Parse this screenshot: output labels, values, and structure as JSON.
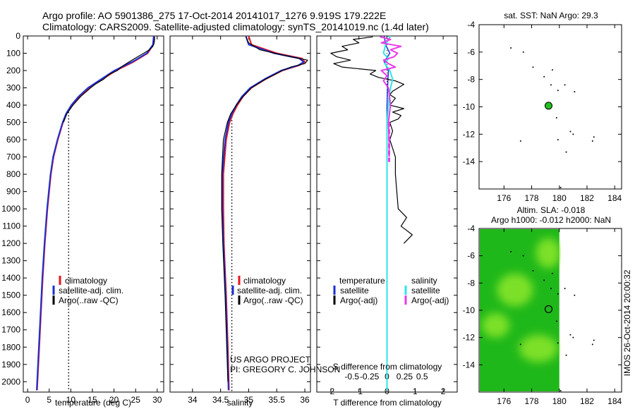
{
  "header": {
    "line1": "Argo profile: AO 5901386_275 17-Oct-2014 20141017_1276 9.919S 179.222E",
    "line2": "Climatology: CARS2009. Satellite-adjusted climatology: synTS_20141019.nc (1.4d later)"
  },
  "credits": {
    "line1": "US ARGO PROJECT",
    "line2": "PI: GREGORY C. JOHNSON"
  },
  "side_label": "IMOS 26-Oct-2014 20:00:32",
  "colors": {
    "climatology": "#e8161e",
    "satellite": "#1a2fd6",
    "argo": "#000000",
    "salinity_satellite": "#2ee6e6",
    "salinity_argo": "#e83be8",
    "float_marker": "#22c21e",
    "sla_dark": "#1fb81a",
    "sla_light": "#8de82a"
  },
  "chart_data": [
    {
      "id": "temperature",
      "type": "line",
      "xlabel": "temperature (deg C)",
      "ylabel": "",
      "xlim": [
        -1,
        31.5
      ],
      "ylim": [
        2060,
        0
      ],
      "xticks": [
        0,
        5,
        10,
        15,
        20,
        25,
        30
      ],
      "yticks": [
        0,
        100,
        200,
        300,
        400,
        500,
        600,
        700,
        800,
        900,
        1000,
        1100,
        1200,
        1300,
        1400,
        1500,
        1600,
        1700,
        1800,
        1900,
        2000
      ],
      "reference_line": {
        "x": 9.5,
        "from_depth": 440,
        "to_depth": 2060,
        "style": "dotted"
      },
      "legend": [
        "climatology",
        "satellite-adj. clim.",
        "Argo(..raw -QC)"
      ],
      "series": [
        {
          "name": "climatology",
          "color": "#e8161e",
          "width": 2,
          "depth": [
            0,
            50,
            100,
            150,
            200,
            250,
            300,
            350,
            400,
            450,
            500,
            600,
            700,
            800,
            900,
            1000,
            1200,
            1400,
            1600,
            1800,
            2000,
            2050
          ],
          "values": [
            29.3,
            29.1,
            27.8,
            24.5,
            20.5,
            17.3,
            14.3,
            12.0,
            10.3,
            9.0,
            8.2,
            7.0,
            6.0,
            5.4,
            5.0,
            4.6,
            4.0,
            3.5,
            3.1,
            2.7,
            2.3,
            2.2
          ]
        },
        {
          "name": "satellite-adj. clim.",
          "color": "#1a2fd6",
          "width": 2,
          "depth": [
            0,
            50,
            100,
            150,
            200,
            250,
            300,
            350,
            400,
            450,
            500,
            600,
            700,
            800,
            900,
            1000,
            1200,
            1400,
            1600,
            1800,
            2000,
            2050
          ],
          "values": [
            29.2,
            29.0,
            27.6,
            24.2,
            20.1,
            17.0,
            14.0,
            11.8,
            10.1,
            8.9,
            8.1,
            6.9,
            5.9,
            5.3,
            4.9,
            4.5,
            3.9,
            3.4,
            3.0,
            2.6,
            2.2,
            2.1
          ]
        },
        {
          "name": "Argo(..raw -QC)",
          "color": "#000000",
          "width": 1.2,
          "depth": [
            5,
            20,
            40,
            60,
            80,
            100,
            120,
            150,
            180,
            200,
            220,
            250,
            280,
            300,
            350,
            400,
            450,
            500
          ],
          "values": [
            29.4,
            29.4,
            29.3,
            29.0,
            28.2,
            26.9,
            25.5,
            23.5,
            21.6,
            20.8,
            19.0,
            17.6,
            15.6,
            14.6,
            12.3,
            10.5,
            9.1,
            8.3
          ]
        }
      ]
    },
    {
      "id": "salinity",
      "type": "line",
      "xlabel": "salinity",
      "ylabel": "",
      "xlim": [
        33.6,
        36.1
      ],
      "ylim": [
        2060,
        0
      ],
      "xticks": [
        34,
        34.5,
        35,
        35.5,
        36
      ],
      "xtick_labels": [
        "34",
        "34.5",
        "35",
        "35.5",
        "36"
      ],
      "reference_line": {
        "x": 34.7,
        "from_depth": 450,
        "to_depth": 2060,
        "style": "dotted"
      },
      "legend": [
        "climatology",
        "satellite-adj. clim.",
        "Argo(..raw -QC)"
      ],
      "series": [
        {
          "name": "climatology",
          "color": "#e8161e",
          "width": 2,
          "depth": [
            0,
            50,
            100,
            130,
            150,
            170,
            200,
            250,
            300,
            350,
            400,
            450,
            500,
            600,
            800,
            1000,
            1200,
            1500,
            1800,
            2050
          ],
          "values": [
            35.0,
            35.05,
            35.5,
            35.95,
            36.0,
            35.9,
            35.6,
            35.3,
            35.05,
            34.9,
            34.8,
            34.72,
            34.66,
            34.6,
            34.55,
            34.55,
            34.56,
            34.6,
            34.63,
            34.65
          ]
        },
        {
          "name": "satellite-adj. clim.",
          "color": "#1a2fd6",
          "width": 2,
          "depth": [
            0,
            50,
            100,
            130,
            150,
            170,
            200,
            250,
            300,
            350,
            400,
            450,
            500,
            600,
            800,
            1000,
            1200,
            1500,
            1800,
            2050
          ],
          "values": [
            34.95,
            35.0,
            35.45,
            35.9,
            35.98,
            35.88,
            35.58,
            35.28,
            35.03,
            34.88,
            34.78,
            34.7,
            34.64,
            34.58,
            34.53,
            34.53,
            34.55,
            34.59,
            34.62,
            34.64
          ]
        },
        {
          "name": "Argo(..raw -QC)",
          "color": "#000000",
          "width": 1.2,
          "depth": [
            5,
            40,
            80,
            110,
            140,
            160,
            180,
            200,
            250,
            300,
            350,
            400,
            450,
            500,
            600,
            800,
            1000,
            1200,
            1500,
            1800,
            2000
          ],
          "values": [
            34.95,
            35.0,
            35.2,
            35.6,
            36.05,
            36.0,
            35.75,
            35.6,
            35.3,
            35.05,
            34.9,
            34.78,
            34.68,
            34.62,
            34.55,
            34.52,
            34.52,
            34.54,
            34.58,
            34.61,
            34.63
          ]
        }
      ]
    },
    {
      "id": "differences",
      "type": "line",
      "xlabel": "T difference from climatology",
      "xlabel_top": "S difference from climatology",
      "ylim": [
        2060,
        0
      ],
      "xlim_T": [
        -2.5,
        2.5
      ],
      "xticks_T": [
        -2,
        -1,
        0,
        1,
        2
      ],
      "xlim_S": [
        -0.5,
        0.5
      ],
      "xticks_S": [
        -0.5,
        -0.25,
        0,
        0.25,
        0.5
      ],
      "xtick_labels_S": [
        "-0.5",
        "-0.25",
        "0",
        "0.25",
        "0.5"
      ],
      "legend_headers": [
        "temperature",
        "salinity"
      ],
      "legend_left": [
        "satellite",
        "Argo(-adj)"
      ],
      "legend_right": [
        "satellite",
        "Argo(-adj)"
      ],
      "series": [
        {
          "name": "temperature satellite",
          "color": "#1a2fd6",
          "width": 1.5,
          "axis": "T",
          "depth": [
            0,
            50,
            100,
            150,
            200,
            300,
            400,
            600,
            1000,
            1500,
            2050
          ],
          "values": [
            -0.1,
            -0.05,
            0.1,
            -0.1,
            0.05,
            0.02,
            0.0,
            0.0,
            0.0,
            0.0,
            0.0
          ]
        },
        {
          "name": "temperature Argo(-adj)",
          "color": "#000000",
          "width": 1.2,
          "axis": "T",
          "depth": [
            5,
            20,
            40,
            60,
            80,
            100,
            120,
            140,
            160,
            180,
            200,
            220,
            240,
            260,
            280,
            300,
            320,
            340,
            360,
            380,
            400,
            420,
            440,
            460,
            480,
            500,
            550,
            600,
            700,
            800,
            900,
            1000,
            1050,
            1100,
            1150,
            1200
          ],
          "values": [
            -0.5,
            -1.2,
            -1.0,
            -1.6,
            -1.4,
            -2.0,
            -1.8,
            -1.3,
            -1.9,
            -1.6,
            -0.4,
            -0.6,
            -0.3,
            0.3,
            0.6,
            0.4,
            0.2,
            0.1,
            0.3,
            0.2,
            0.1,
            0.6,
            0.2,
            0.5,
            0.4,
            0.1,
            0.2,
            0.1,
            0.3,
            0.3,
            0.35,
            0.4,
            0.7,
            0.5,
            0.9,
            0.6
          ]
        },
        {
          "name": "salinity satellite",
          "color": "#2ee6e6",
          "width": 2,
          "axis": "S",
          "depth": [
            0,
            50,
            100,
            130,
            160,
            200,
            250,
            300,
            350,
            400,
            500,
            700,
            1000,
            1500,
            2050
          ],
          "values": [
            0.05,
            -0.02,
            -0.05,
            0.02,
            -0.03,
            0.04,
            0.08,
            0.05,
            0.03,
            0.02,
            0.0,
            0.0,
            0.0,
            0.0,
            0.0
          ]
        },
        {
          "name": "salinity Argo(-adj)",
          "color": "#e83be8",
          "width": 2,
          "axis": "S",
          "depth": [
            5,
            20,
            40,
            60,
            80,
            100,
            120,
            140,
            160,
            180,
            200,
            230,
            260,
            300,
            400,
            500,
            600,
            700
          ],
          "values": [
            -0.1,
            0.05,
            -0.08,
            0.2,
            0.05,
            0.15,
            0.1,
            -0.05,
            0.02,
            0.12,
            -0.08,
            0.0,
            -0.05,
            0.02,
            0.05,
            0.02,
            0.03,
            0.03
          ]
        }
      ]
    },
    {
      "id": "sst_map",
      "type": "scatter",
      "title": "sat. SST: NaN Argo: 29.3",
      "xlim": [
        174.2,
        184.5
      ],
      "ylim": [
        -16,
        -4
      ],
      "xticks": [
        176,
        178,
        180,
        182,
        184
      ],
      "yticks": [
        -4,
        -6,
        -8,
        -10,
        -12,
        -14
      ],
      "float_position": {
        "lon": 179.222,
        "lat": -9.919
      },
      "islands": [
        [
          176.5,
          -5.7
        ],
        [
          177.4,
          -6.0
        ],
        [
          178.1,
          -7.1
        ],
        [
          179.5,
          -7.3
        ],
        [
          178.9,
          -7.8
        ],
        [
          179.4,
          -8.4
        ],
        [
          179.9,
          -8.8
        ],
        [
          180.4,
          -8.4
        ],
        [
          181.1,
          -8.9
        ],
        [
          179.8,
          -10.8
        ],
        [
          180.8,
          -11.8
        ],
        [
          181.0,
          -12.0
        ],
        [
          182.5,
          -12.2
        ],
        [
          182.4,
          -12.5
        ],
        [
          177.2,
          -12.5
        ],
        [
          179.9,
          -12.4
        ],
        [
          180.5,
          -13.3
        ],
        [
          180.1,
          -15.9
        ]
      ]
    },
    {
      "id": "sla_map",
      "type": "heatmap",
      "title_line1": "Altim. SLA: -0.018",
      "title_line2": "Argo h1000: -0.012 h2000: NaN",
      "xlim": [
        174.2,
        184.5
      ],
      "ylim": [
        -16,
        -4
      ],
      "xticks": [
        176,
        178,
        180,
        182,
        184
      ],
      "yticks": [
        -4,
        -6,
        -8,
        -10,
        -12,
        -14
      ],
      "data_extent_lon": [
        174.2,
        180.0
      ],
      "float_position": {
        "lon": 179.222,
        "lat": -9.919
      },
      "bright_patches": [
        [
          178.5,
          -12.8,
          1.4,
          1.0
        ],
        [
          176.8,
          -8.5,
          1.3,
          1.2
        ],
        [
          179.2,
          -5.8,
          0.9,
          1.1
        ],
        [
          175.4,
          -11.1,
          1.0,
          0.9
        ]
      ]
    }
  ]
}
